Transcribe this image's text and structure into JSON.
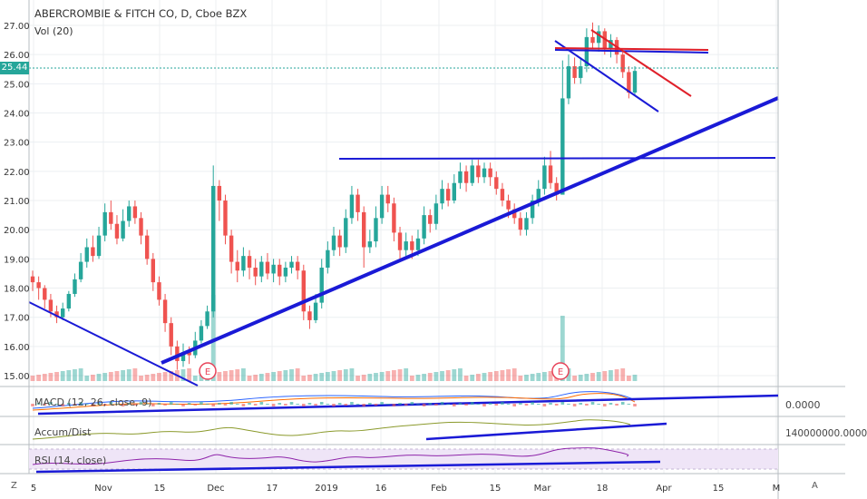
{
  "header": {
    "title": "ABERCROMBIE & FITCH CO, D, Cboe BZX",
    "vol_label": "Vol (20)"
  },
  "price_axis": {
    "ticks": [
      "27.00",
      "26.00",
      "25.00",
      "24.00",
      "23.00",
      "22.00",
      "21.00",
      "20.00",
      "19.00",
      "18.00",
      "17.00",
      "16.00",
      "15.00"
    ],
    "current_price": "25.44",
    "current_color": "#26a69a"
  },
  "time_axis": {
    "ticks": [
      "5",
      "Nov",
      "15",
      "Dec",
      "17",
      "2019",
      "16",
      "Feb",
      "15",
      "Mar",
      "18",
      "Apr",
      "15",
      "M"
    ]
  },
  "indicators": {
    "macd": {
      "label": "MACD (12, 26, close, 9)",
      "value": "0.0000"
    },
    "accum": {
      "label": "Accum/Dist",
      "value": "140000000.0000"
    },
    "rsi": {
      "label": "RSI (14, close)"
    }
  },
  "earnings_marker": "E",
  "corner": {
    "left": "Z",
    "right": "A"
  },
  "colors": {
    "up": "#26a69a",
    "down": "#ef5350",
    "trendline": "#1a1ad6",
    "resistance": "#e0202a",
    "rsi_bg": "#efe5f7"
  }
}
